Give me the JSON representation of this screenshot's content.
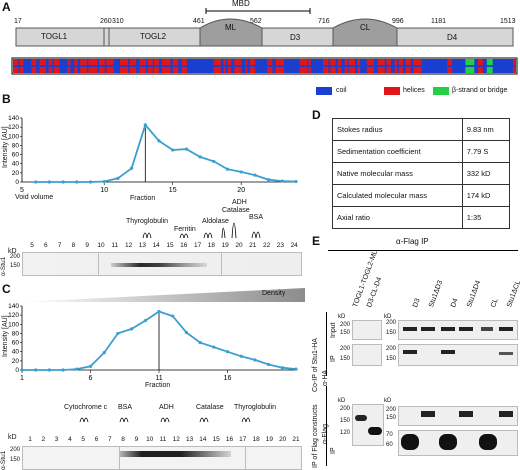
{
  "panel_a": {
    "label": "A",
    "positions": [
      "17",
      "260",
      "310",
      "461",
      "562",
      "716",
      "996",
      "1181",
      "1513"
    ],
    "mbd_label": "MBD",
    "domains": [
      "TOGL1",
      "TOGL2",
      "ML",
      "D3",
      "CL",
      "D4"
    ],
    "legend": [
      {
        "label": "coil",
        "color": "#1a3fd0"
      },
      {
        "label": "helices",
        "color": "#e0161b"
      },
      {
        "label": "β-strand or bridge",
        "color": "#23d044"
      }
    ]
  },
  "panel_b": {
    "label": "B",
    "ylabel": "Intensity [AU]",
    "xlabel": "Fraction",
    "void_label": "Void volume",
    "void_tick": "5",
    "markers": [
      "Thyroglobulin",
      "Ferritin",
      "Aldolase",
      "Catalase",
      "ADH",
      "BSA"
    ],
    "blot_label": "α-Stu1",
    "kd": "kD",
    "mw": [
      "200",
      "150"
    ],
    "lanes": [
      "5",
      "6",
      "7",
      "8",
      "9",
      "10",
      "11",
      "12",
      "13",
      "14",
      "15",
      "16",
      "17",
      "18",
      "19",
      "20",
      "21",
      "22",
      "23",
      "24"
    ]
  },
  "panel_c": {
    "label": "C",
    "density": "Density",
    "ylabel": "Intensity [AU]",
    "xlabel": "Fraction",
    "markers": [
      "Cytochrome c",
      "BSA",
      "ADH",
      "Catalase",
      "Thyroglobulin"
    ],
    "blot_label": "α-Stu1",
    "kd": "kD",
    "mw": [
      "200",
      "150"
    ],
    "lanes": [
      "1",
      "2",
      "3",
      "4",
      "5",
      "6",
      "7",
      "8",
      "9",
      "10",
      "11",
      "12",
      "13",
      "14",
      "15",
      "16",
      "17",
      "18",
      "19",
      "20",
      "21"
    ]
  },
  "panel_d": {
    "label": "D",
    "rows": [
      {
        "k": "Stokes radius",
        "v": "9.83 nm"
      },
      {
        "k": "Sedimentation coefficient",
        "v": "7.79 S"
      },
      {
        "k": "Native molecular mass",
        "v": "332 kD"
      },
      {
        "k": "Calculated molecular mass",
        "v": "174 kD"
      },
      {
        "k": "Axial ratio",
        "v": "1:35"
      }
    ]
  },
  "panel_e": {
    "label": "E",
    "title": "α-Flag IP",
    "lanes_left": [
      "TOGL1-TOGL2-ML",
      "D3-CL-D4"
    ],
    "lanes_right": [
      "D3",
      "Stu1ΔD3",
      "D4",
      "Stu1ΔD4",
      "CL",
      "Stu1ΔCL"
    ],
    "row1": "Co-IP of Stu1-HA",
    "input": "Input",
    "ip": "IP",
    "aha": "α-HA",
    "row2": "IP of Flag constructs",
    "aflag": "α-Flag",
    "kd": "kD",
    "mw_top": [
      "200",
      "150"
    ],
    "mw_bottom_left": [
      "200",
      "150",
      "120"
    ],
    "mw_bottom_right": [
      "200",
      "150",
      "70",
      "60"
    ]
  },
  "chart_data": [
    {
      "type": "line",
      "title": "",
      "xlabel": "Fraction",
      "ylabel": "Intensity [AU]",
      "xlim": [
        4,
        24
      ],
      "ylim": [
        0,
        140
      ],
      "x": [
        5,
        6,
        7,
        8,
        9,
        10,
        11,
        12,
        13,
        14,
        15,
        16,
        17,
        18,
        19,
        20,
        21,
        22,
        23,
        24
      ],
      "values": [
        0,
        0,
        0,
        0,
        0,
        1,
        8,
        30,
        125,
        90,
        70,
        72,
        55,
        45,
        28,
        22,
        15,
        5,
        2,
        1
      ],
      "x_ticks": [
        10,
        15,
        20
      ],
      "y_ticks": [
        0,
        20,
        40,
        60,
        80,
        100,
        120,
        140
      ]
    },
    {
      "type": "line",
      "title": "",
      "xlabel": "Fraction",
      "ylabel": "Intensity [AU]",
      "xlim": [
        1,
        21
      ],
      "ylim": [
        0,
        140
      ],
      "x": [
        1,
        2,
        3,
        4,
        5,
        6,
        7,
        8,
        9,
        10,
        11,
        12,
        13,
        14,
        15,
        16,
        17,
        18,
        19,
        20,
        21
      ],
      "values": [
        0,
        0,
        0,
        0,
        2,
        8,
        38,
        80,
        90,
        108,
        128,
        118,
        82,
        60,
        50,
        40,
        30,
        22,
        12,
        5,
        2
      ],
      "x_ticks": [
        1,
        6,
        11,
        16
      ],
      "y_ticks": [
        0,
        20,
        40,
        60,
        80,
        100,
        120,
        140
      ]
    }
  ]
}
